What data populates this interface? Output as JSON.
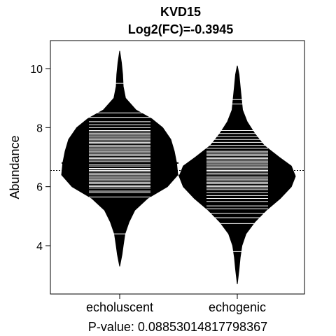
{
  "chart_data": {
    "type": "beanplot",
    "title": "KVD15",
    "subtitle": "Log2(FC)=-0.3945",
    "xlabel": "P-value: 0.08853014817798367",
    "ylabel": "Abundance",
    "ylim": [
      2.6,
      10.6
    ],
    "yticks": [
      4,
      6,
      8,
      10
    ],
    "categories": [
      "echoluscent",
      "echogenic"
    ],
    "overall_mean": 6.55,
    "series": [
      {
        "group_mean": 6.8,
        "density_range": [
          3.3,
          10.6
        ],
        "density": [
          [
            3.3,
            0.0
          ],
          [
            3.7,
            0.04
          ],
          [
            4.0,
            0.06
          ],
          [
            4.4,
            0.09
          ],
          [
            4.8,
            0.16
          ],
          [
            5.2,
            0.26
          ],
          [
            5.6,
            0.48
          ],
          [
            6.0,
            0.82
          ],
          [
            6.4,
            1.0
          ],
          [
            6.8,
            0.98
          ],
          [
            7.2,
            0.94
          ],
          [
            7.6,
            0.88
          ],
          [
            8.0,
            0.74
          ],
          [
            8.3,
            0.55
          ],
          [
            8.6,
            0.28
          ],
          [
            9.0,
            0.1
          ],
          [
            9.4,
            0.06
          ],
          [
            9.8,
            0.05
          ],
          [
            10.2,
            0.03
          ],
          [
            10.6,
            0.0
          ]
        ],
        "points": [
          4.4,
          5.65,
          5.8,
          5.85,
          5.95,
          6.0,
          6.05,
          6.1,
          6.15,
          6.2,
          6.25,
          6.3,
          6.35,
          6.4,
          6.45,
          6.5,
          6.55,
          6.6,
          6.62,
          6.7,
          6.75,
          6.8,
          6.85,
          6.9,
          6.95,
          7.0,
          7.05,
          7.1,
          7.15,
          7.2,
          7.25,
          7.3,
          7.35,
          7.4,
          7.45,
          7.5,
          7.55,
          7.6,
          7.65,
          7.7,
          7.75,
          7.8,
          7.85,
          7.9,
          8.0,
          8.1,
          8.2,
          8.35,
          8.5,
          9.5
        ]
      },
      {
        "group_mean": 6.38,
        "density_range": [
          2.7,
          10.1
        ],
        "density": [
          [
            2.7,
            0.0
          ],
          [
            3.2,
            0.03
          ],
          [
            3.6,
            0.05
          ],
          [
            4.0,
            0.08
          ],
          [
            4.4,
            0.15
          ],
          [
            4.8,
            0.3
          ],
          [
            5.2,
            0.5
          ],
          [
            5.6,
            0.74
          ],
          [
            6.0,
            0.93
          ],
          [
            6.35,
            1.0
          ],
          [
            6.7,
            0.93
          ],
          [
            7.0,
            0.72
          ],
          [
            7.4,
            0.46
          ],
          [
            7.8,
            0.3
          ],
          [
            8.2,
            0.17
          ],
          [
            8.6,
            0.09
          ],
          [
            9.0,
            0.07
          ],
          [
            9.4,
            0.05
          ],
          [
            9.8,
            0.03
          ],
          [
            10.1,
            0.0
          ]
        ],
        "points": [
          3.8,
          4.75,
          4.95,
          5.1,
          5.25,
          5.35,
          5.5,
          5.6,
          5.7,
          5.8,
          5.9,
          5.95,
          6.0,
          6.05,
          6.1,
          6.15,
          6.2,
          6.25,
          6.3,
          6.35,
          6.4,
          6.45,
          6.5,
          6.55,
          6.6,
          6.65,
          6.7,
          6.75,
          6.8,
          6.85,
          6.9,
          6.95,
          7.0,
          7.05,
          7.1,
          7.15,
          7.2,
          7.3,
          7.4,
          7.5,
          7.6,
          7.7,
          7.8,
          7.9,
          8.8,
          8.95
        ]
      }
    ]
  }
}
